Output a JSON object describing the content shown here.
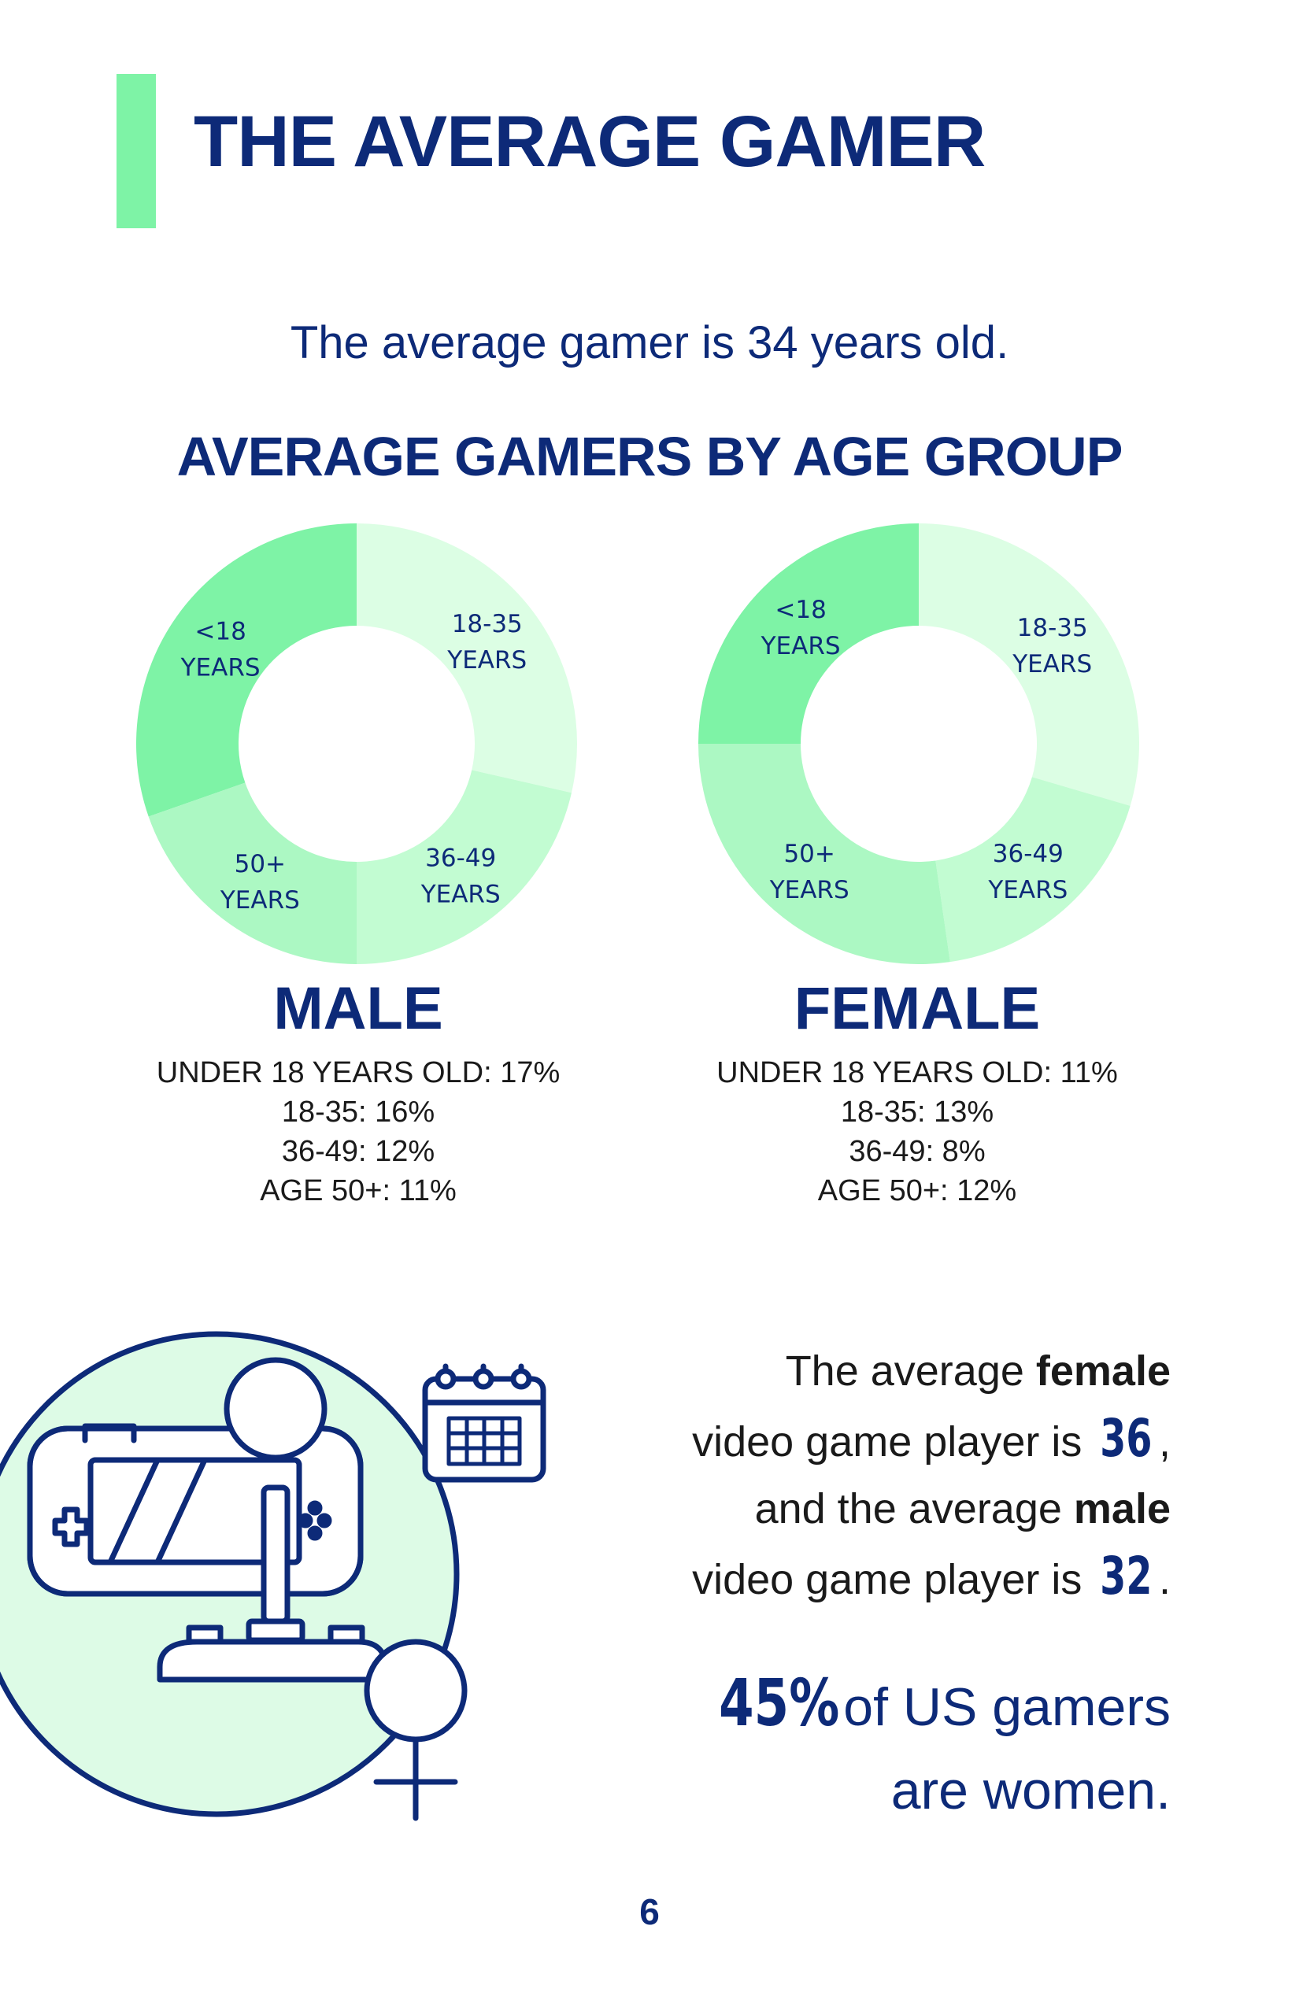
{
  "header": {
    "title": "THE AVERAGE GAMER"
  },
  "average_age_text": "The average gamer is 34 years old.",
  "section_title": "AVERAGE GAMERS BY AGE GROUP",
  "colors": {
    "accent": "#7ef3a6",
    "navy": "#0d2a78",
    "slice_under18": "#7ef3a6",
    "slice_18_35": "#dcfee4",
    "slice_36_49": "#c2fcd2",
    "slice_50plus": "#acf8c3",
    "illustration_bg": "#ddfbe6"
  },
  "chart_data": [
    {
      "type": "pie",
      "title": "MALE",
      "categories": [
        "<18 YEARS",
        "18-35 YEARS",
        "36-49 YEARS",
        "50+ YEARS"
      ],
      "values": [
        17,
        16,
        12,
        11
      ],
      "slice_labels": [
        [
          "<18",
          "YEARS"
        ],
        [
          "18-35",
          "YEARS"
        ],
        [
          "36-49",
          "YEARS"
        ],
        [
          "50+",
          "YEARS"
        ]
      ]
    },
    {
      "type": "pie",
      "title": "FEMALE",
      "categories": [
        "<18 YEARS",
        "18-35 YEARS",
        "36-49 YEARS",
        "50+ YEARS"
      ],
      "values": [
        11,
        13,
        8,
        12
      ],
      "slice_labels": [
        [
          "<18",
          "YEARS"
        ],
        [
          "18-35",
          "YEARS"
        ],
        [
          "36-49",
          "YEARS"
        ],
        [
          "50+",
          "YEARS"
        ]
      ]
    }
  ],
  "male": {
    "title": "MALE",
    "stats": [
      "UNDER 18 YEARS OLD: 17%",
      "18-35: 16%",
      "36-49: 12%",
      "AGE 50+: 11%"
    ]
  },
  "female": {
    "title": "FEMALE",
    "stats": [
      "UNDER 18 YEARS OLD: 11%",
      "18-35: 13%",
      "36-49: 8%",
      "AGE 50+: 12%"
    ]
  },
  "facts": {
    "female_prefix": "The average ",
    "female_word": "female",
    "line2_prefix": "video game player is ",
    "female_age": "36",
    "line2_suffix": ",",
    "male_prefix": "and the average ",
    "male_word": "male",
    "line4_prefix": "video game player is ",
    "male_age": "32",
    "line4_suffix": "."
  },
  "women_fact": {
    "percent": "45%",
    "rest": " of US gamers",
    "line2": "are women."
  },
  "icons": [
    "handheld-console-icon",
    "joystick-icon",
    "calendar-icon",
    "female-symbol-icon"
  ],
  "page_number": "6"
}
